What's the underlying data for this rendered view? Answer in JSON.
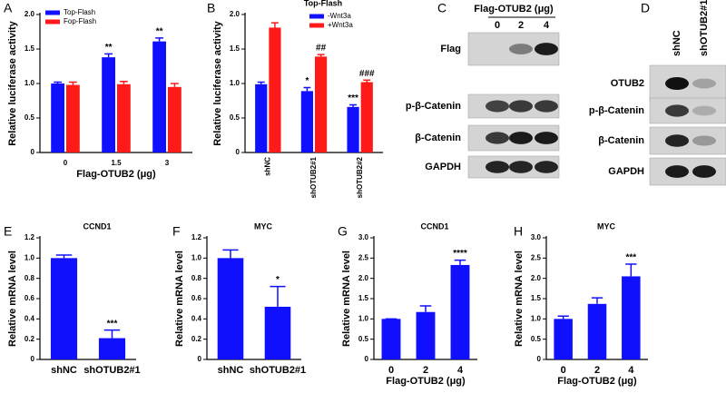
{
  "chart_data": [
    {
      "type": "bar",
      "panel": "A",
      "ylabel": "Relative luciferase activity",
      "xlabel": "Flag-OTUB2 (μg)",
      "categories": [
        "0",
        "1.5",
        "3"
      ],
      "legend": "upper left",
      "series": [
        {
          "name": "Top-Flash",
          "color": "#1010ff",
          "values": [
            1.0,
            1.38,
            1.61
          ],
          "errors": [
            0.02,
            0.05,
            0.05
          ],
          "annotations": [
            null,
            "**",
            "**"
          ]
        },
        {
          "name": "Fop-Flash",
          "color": "#ff1a1a",
          "values": [
            0.98,
            0.99,
            0.95
          ],
          "errors": [
            0.04,
            0.04,
            0.05
          ],
          "annotations": [
            null,
            null,
            null
          ]
        }
      ],
      "ylim": [
        0,
        2.0
      ],
      "yticks": [
        0,
        0.5,
        {
          "value": 1.0,
          "label": "1.0"
        },
        1.5,
        {
          "value": 2.0,
          "label": "2.0"
        }
      ]
    },
    {
      "type": "bar",
      "panel": "B",
      "title": "Top-Flash",
      "ylabel": "Relative luciferase activity",
      "categories": [
        "shNC",
        "shOTUB2#1",
        "shOTUB2#2"
      ],
      "xtick_rotation": 90,
      "legend": "upper center",
      "series": [
        {
          "name": "-Wnt3a",
          "color": "#1010ff",
          "values": [
            0.99,
            0.89,
            0.66
          ],
          "errors": [
            0.03,
            0.05,
            0.03
          ],
          "annotations": [
            null,
            "*",
            "***"
          ]
        },
        {
          "name": "+Wnt3a",
          "color": "#ff1a1a",
          "values": [
            1.81,
            1.39,
            1.02
          ],
          "errors": [
            0.07,
            0.03,
            0.03
          ],
          "annotations": [
            null,
            "##",
            "###"
          ]
        }
      ],
      "ylim": [
        0,
        2.0
      ],
      "yticks": [
        0,
        0.5,
        {
          "value": 1.0,
          "label": "1.0"
        },
        1.5,
        {
          "value": 2.0,
          "label": "2.0"
        }
      ]
    },
    {
      "type": "bar",
      "panel": "E",
      "title": "CCND1",
      "ylabel": "Relative mRNA level",
      "categories": [
        "shNC",
        "shOTUB2#1"
      ],
      "color": "#1010ff",
      "values": [
        1.0,
        0.21
      ],
      "errors": [
        0.03,
        0.08
      ],
      "annotations": [
        null,
        "***"
      ],
      "ylim": [
        0,
        1.2
      ],
      "yticks": [
        0,
        0.2,
        0.4,
        0.6,
        0.8,
        {
          "value": 1.0,
          "label": "1.0"
        },
        1.2
      ]
    },
    {
      "type": "bar",
      "panel": "F",
      "title": "MYC",
      "ylabel": "Relative mRNA level",
      "categories": [
        "shNC",
        "shOTUB2#1"
      ],
      "color": "#1010ff",
      "values": [
        1.0,
        0.52
      ],
      "errors": [
        0.08,
        0.2
      ],
      "annotations": [
        null,
        "*"
      ],
      "ylim": [
        0,
        1.2
      ],
      "yticks": [
        0,
        0.2,
        0.4,
        0.6,
        0.8,
        {
          "value": 1.0,
          "label": "1.0"
        },
        1.2
      ]
    },
    {
      "type": "bar",
      "panel": "G",
      "title": "CCND1",
      "ylabel": "Relative mRNA level",
      "xlabel": "Flag-OTUB2 (μg)",
      "categories": [
        "0",
        "2",
        "4"
      ],
      "color": "#1010ff",
      "values": [
        1.0,
        1.17,
        2.33
      ],
      "errors": [
        0,
        0.15,
        0.12
      ],
      "annotations": [
        null,
        null,
        "****"
      ],
      "ylim": [
        0,
        3.0
      ],
      "yticks": [
        0,
        0.5,
        {
          "value": 1.0,
          "label": "1.0"
        },
        1.5,
        {
          "value": 2.0,
          "label": "2.0"
        },
        2.5,
        {
          "value": 3.0,
          "label": "3.0"
        }
      ]
    },
    {
      "type": "bar",
      "panel": "H",
      "title": "MYC",
      "ylabel": "Relative mRNA level",
      "xlabel": "Flag-OTUB2 (μg)",
      "categories": [
        "0",
        "2",
        "4"
      ],
      "color": "#1010ff",
      "values": [
        1.0,
        1.37,
        2.05
      ],
      "errors": [
        0.07,
        0.15,
        0.3
      ],
      "annotations": [
        null,
        null,
        "***"
      ],
      "ylim": [
        0,
        3.0
      ],
      "yticks": [
        0,
        0.5,
        {
          "value": 1.0,
          "label": "1.0"
        },
        1.5,
        {
          "value": 2.0,
          "label": "2.0"
        },
        2.5,
        {
          "value": 3.0,
          "label": "3.0"
        }
      ]
    }
  ],
  "blots": [
    {
      "panel": "C",
      "title": "Flag-OTUB2 (μg)",
      "lanes": [
        "0",
        "2",
        "4"
      ],
      "rows": [
        "Flag",
        "p-β-Catenin",
        "β-Catenin",
        "GAPDH"
      ]
    },
    {
      "panel": "D",
      "lanes": [
        "shNC",
        "shOTUB2#1"
      ],
      "rows": [
        "OTUB2",
        "p-β-Catenin",
        "β-Catenin",
        "GAPDH"
      ]
    }
  ]
}
